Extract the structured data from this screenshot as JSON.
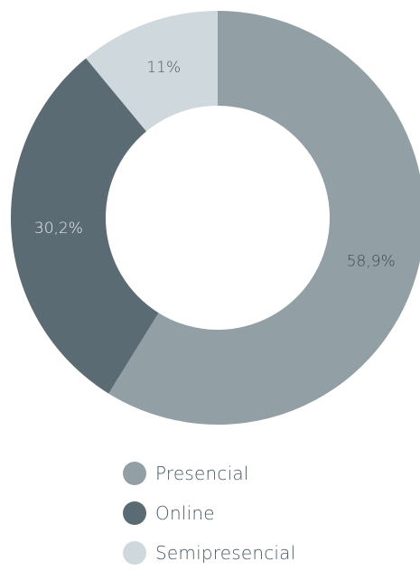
{
  "chart_data": {
    "type": "pie",
    "donut": true,
    "title": "",
    "legend_position": "bottom",
    "slices": [
      {
        "name": "Presencial",
        "value": 58.9,
        "label": "58,9%",
        "color": "#929fa4",
        "label_color": "#3d4a52"
      },
      {
        "name": "Online",
        "value": 30.2,
        "label": "30,2%",
        "color": "#5b6b74",
        "label_color": "#e6ebee"
      },
      {
        "name": "Semipresencial",
        "value": 11,
        "label": "11%",
        "color": "#cfd8dc",
        "label_color": "#4b5a62"
      }
    ]
  },
  "legend": {
    "items": [
      {
        "label": "Presencial",
        "color": "#929fa4"
      },
      {
        "label": "Online",
        "color": "#5b6b74"
      },
      {
        "label": "Semipresencial",
        "color": "#cfd8dc"
      }
    ]
  }
}
